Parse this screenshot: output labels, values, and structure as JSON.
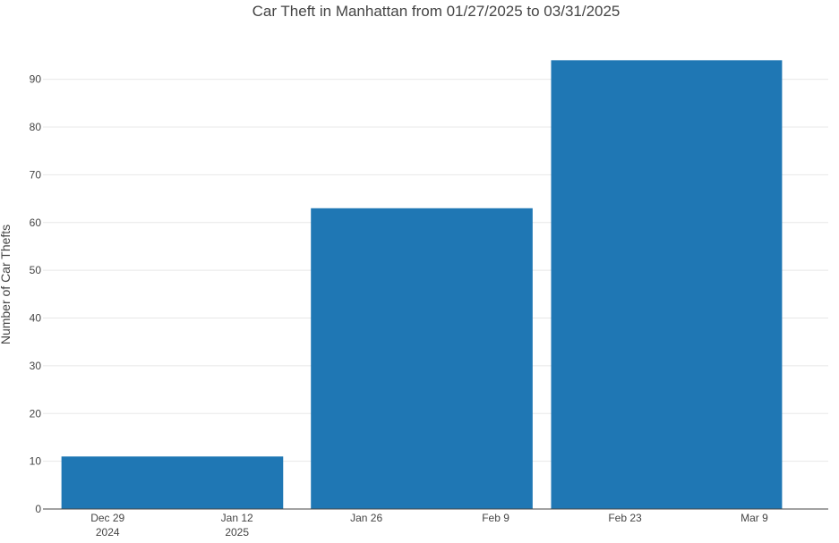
{
  "chart_data": {
    "type": "bar",
    "title": "Car Theft in Manhattan from 01/27/2025 to 03/31/2025",
    "ylabel": "Number of Car Thefts",
    "xlabel": "",
    "ylim": [
      0,
      95
    ],
    "yticks": [
      0,
      10,
      20,
      30,
      40,
      50,
      60,
      70,
      80,
      90
    ],
    "xlim": [
      "2024-12-22",
      "2025-03-17"
    ],
    "xticks": [
      {
        "date": "2024-12-29",
        "label": "Dec 29",
        "sublabel": "2024"
      },
      {
        "date": "2025-01-12",
        "label": "Jan 12",
        "sublabel": "2025"
      },
      {
        "date": "2025-01-26",
        "label": "Jan 26",
        "sublabel": ""
      },
      {
        "date": "2025-02-09",
        "label": "Feb 9",
        "sublabel": ""
      },
      {
        "date": "2025-02-23",
        "label": "Feb 23",
        "sublabel": ""
      },
      {
        "date": "2025-03-09",
        "label": "Mar 9",
        "sublabel": ""
      }
    ],
    "bars": [
      {
        "start": "2024-12-24",
        "end": "2025-01-17",
        "value": 11
      },
      {
        "start": "2025-01-20",
        "end": "2025-02-13",
        "value": 63
      },
      {
        "start": "2025-02-15",
        "end": "2025-03-12",
        "value": 94
      }
    ],
    "bar_color": "#1f77b4",
    "grid": true
  }
}
